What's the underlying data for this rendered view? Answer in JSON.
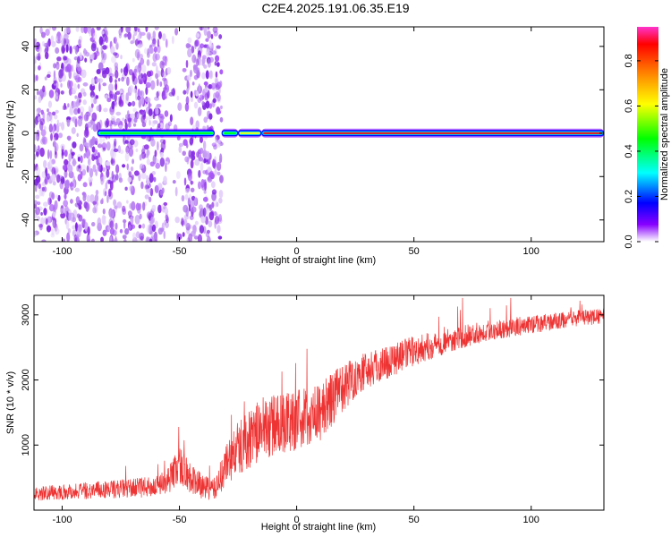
{
  "title": "C2E4.2025.191.06.35.E19",
  "chart_data": [
    {
      "type": "heatmap",
      "xlabel": "Height of straight line (km)",
      "ylabel": "Frequency (Hz)",
      "xlim": [
        -112,
        131
      ],
      "ylim": [
        -50,
        49
      ],
      "xticks": [
        -100,
        -50,
        0,
        50,
        100
      ],
      "yticks": [
        -40,
        -20,
        0,
        20,
        40
      ],
      "xtick_labels": [
        "-100",
        "-50",
        "0",
        "50",
        "100"
      ],
      "ytick_labels": [
        "-40",
        "-20",
        "0",
        "20",
        "40"
      ],
      "colorbar": {
        "label": "Normalized spectral amplitude",
        "range": [
          0,
          0.95
        ],
        "ticks": [
          0,
          0.2,
          0.4,
          0.6,
          0.8
        ],
        "tick_labels": [
          "0.0",
          "0.2",
          "0.4",
          "0.6",
          "0.8"
        ],
        "colormap": [
          "#ff33cc",
          "#ff0000",
          "#ff9900",
          "#ffff00",
          "#00ff00",
          "#00ffff",
          "#0000ff",
          "#8800ff",
          "#ffffff"
        ]
      },
      "features": {
        "noise_region_x": [
          -112,
          -32
        ],
        "noise_gap_x": [
          -55,
          -47
        ],
        "noise_color": "#8a2be2",
        "carrier_frequency_hz": 0,
        "carrier_segments": [
          {
            "x": [
              -85,
              -35
            ],
            "peak": 0.45
          },
          {
            "x": [
              -32,
              -25
            ],
            "peak": 0.5
          },
          {
            "x": [
              -25,
              -15
            ],
            "peak": 0.7
          },
          {
            "x": [
              -15,
              131
            ],
            "peak": 0.95
          }
        ]
      }
    },
    {
      "type": "line",
      "xlabel": "Height of straight line (km)",
      "ylabel": "SNR (10 * v/v)",
      "xlim": [
        -112,
        131
      ],
      "ylim": [
        0,
        3300
      ],
      "xticks": [
        -100,
        -50,
        0,
        50,
        100
      ],
      "yticks": [
        1000,
        2000,
        3000
      ],
      "xtick_labels": [
        "-100",
        "-50",
        "0",
        "50",
        "100"
      ],
      "ytick_labels": [
        "1000",
        "2000",
        "3000"
      ],
      "color": "#ee3333",
      "series": [
        {
          "x": [
            -112,
            -100,
            -90,
            -80,
            -70,
            -60,
            -55,
            -50,
            -45,
            -40,
            -35,
            -30,
            -25,
            -20,
            -15,
            -10,
            -5,
            0,
            5,
            10,
            15,
            20,
            25,
            30,
            40,
            50,
            60,
            70,
            80,
            90,
            100,
            110,
            120,
            131
          ],
          "mean": [
            250,
            280,
            300,
            320,
            340,
            360,
            450,
            700,
            480,
            350,
            320,
            700,
            950,
            1100,
            1250,
            1300,
            1350,
            1400,
            1450,
            1500,
            1700,
            1900,
            2050,
            2150,
            2300,
            2450,
            2550,
            2650,
            2750,
            2800,
            2850,
            2900,
            2950,
            2980
          ],
          "spread": [
            110,
            120,
            130,
            140,
            150,
            160,
            200,
            300,
            250,
            180,
            180,
            350,
            420,
            450,
            480,
            480,
            480,
            480,
            450,
            450,
            420,
            380,
            330,
            300,
            260,
            230,
            200,
            180,
            160,
            150,
            140,
            130,
            120,
            120
          ]
        }
      ]
    }
  ]
}
